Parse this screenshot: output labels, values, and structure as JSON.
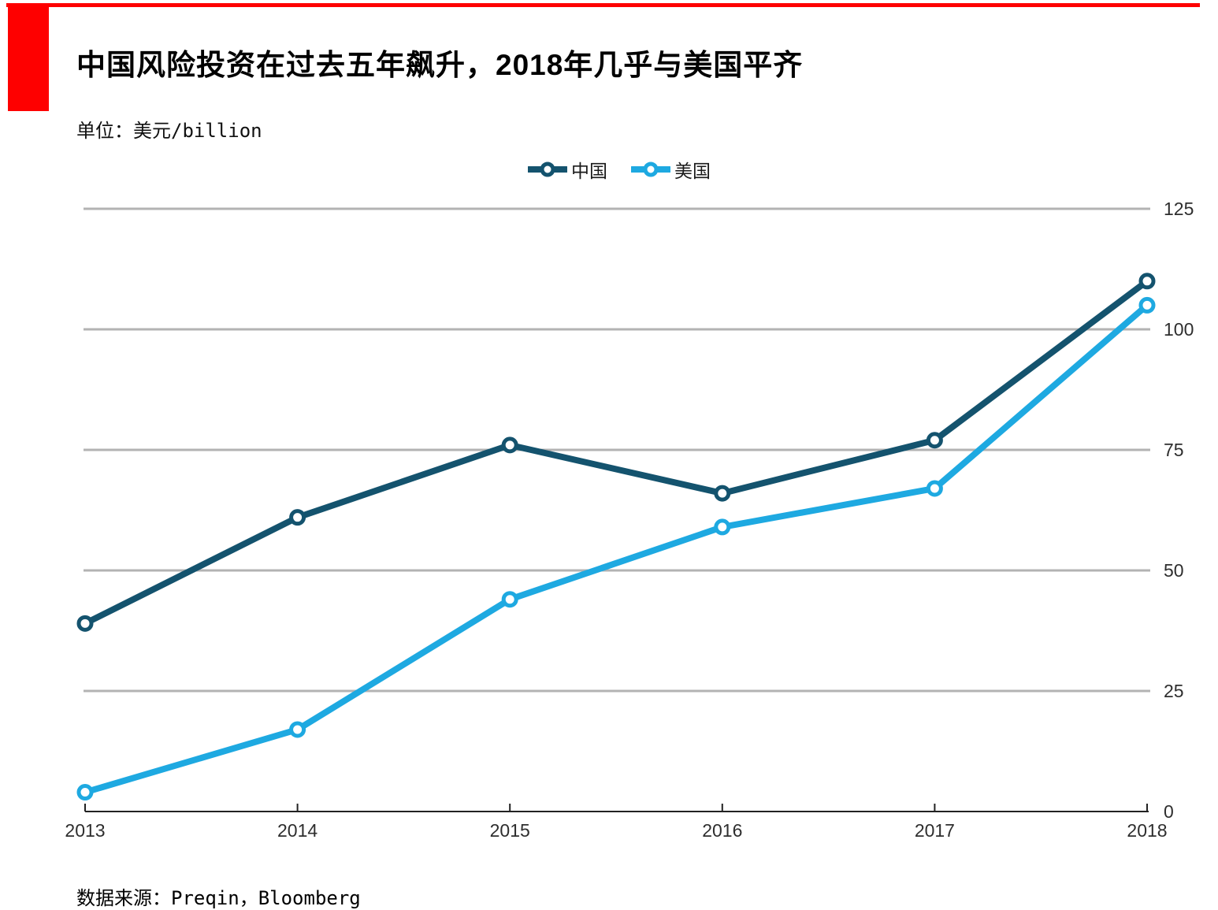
{
  "page": {
    "title": "中国风险投资在过去五年飙升，2018年几乎与美国平齐",
    "subtitle": "单位：美元/billion",
    "source": "数据来源：Preqin，Bloomberg"
  },
  "colors": {
    "accent_red": "#fe0000",
    "china_line": "#14536e",
    "us_line": "#1ea9e1",
    "gridline": "#b3b3b3",
    "axis": "#222222",
    "tick_label": "#2e2e2e",
    "marker_fill": "#ffffff"
  },
  "legend": {
    "items": [
      {
        "label": "中国",
        "swatch_icon": "line-open-circle-icon",
        "color": "#14536e"
      },
      {
        "label": "美国",
        "swatch_icon": "line-open-circle-icon",
        "color": "#1ea9e1"
      }
    ]
  },
  "chart_data": {
    "type": "line",
    "title": "中国风险投资在过去五年飙升，2018年几乎与美国平齐",
    "unit_label": "单位：美元/billion",
    "source": "数据来源：Preqin，Bloomberg",
    "categories": [
      "2013",
      "2014",
      "2015",
      "2016",
      "2017",
      "2018"
    ],
    "series": [
      {
        "name": "中国",
        "color": "#14536e",
        "values": [
          39,
          61,
          76,
          66,
          77,
          110
        ]
      },
      {
        "name": "美国",
        "color": "#1ea9e1",
        "values": [
          4,
          17,
          44,
          59,
          67,
          105
        ]
      }
    ],
    "xlabel": "",
    "ylabel": "美元/billion",
    "ylim": [
      0,
      125
    ],
    "yticks": [
      0,
      25,
      50,
      75,
      100,
      125
    ],
    "grid": true,
    "y_axis_side": "right",
    "legend_position": "top-center",
    "marker": "open-circle"
  }
}
